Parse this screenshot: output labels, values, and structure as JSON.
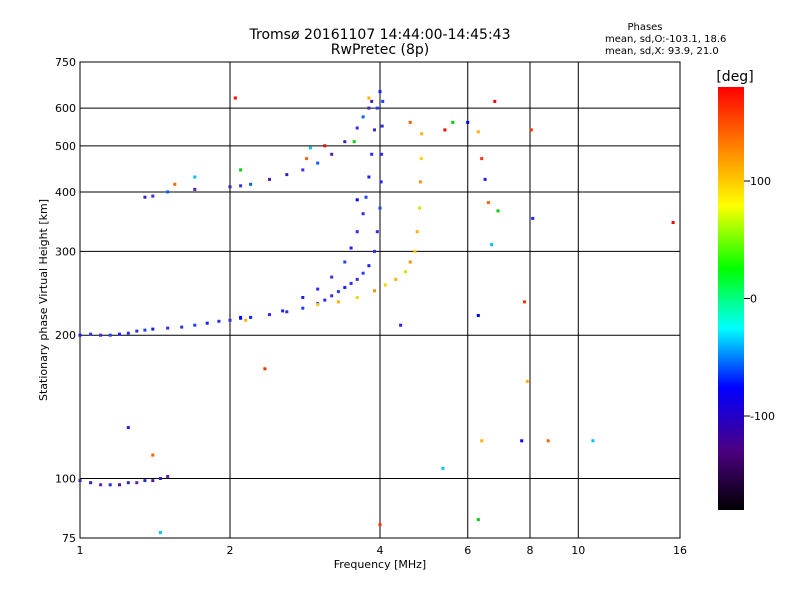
{
  "header": {
    "title_line1": "Tromsø 20161107 14:44:00-14:45:43",
    "title_line2": "RwPretec (8p)",
    "phases_heading": "Phases",
    "phases_o": "mean, sd,O:-103.1, 18.6",
    "phases_x": "mean, sd,X:  93.9, 21.0"
  },
  "colorbar": {
    "unit_label": "[deg]",
    "ticks": [
      "100",
      "0",
      "-100"
    ],
    "tick_values": [
      100,
      0,
      -100
    ],
    "range": [
      -180,
      180
    ]
  },
  "chart_data": {
    "type": "scatter",
    "title": "Tromsø 20161107 14:44:00-14:45:43",
    "subtitle": "RwPretec (8p)",
    "xlabel": "Frequency [MHz]",
    "ylabel": "Stationary phase Virtual Height [km]",
    "x_scale": "log",
    "y_scale": "log",
    "xlim": [
      1,
      16
    ],
    "ylim": [
      75,
      750
    ],
    "x_ticks": [
      1,
      2,
      4,
      6,
      8,
      10,
      16
    ],
    "x_tick_labels": [
      "1",
      "2",
      "4",
      "6",
      "8",
      "10",
      "16"
    ],
    "y_ticks": [
      75,
      100,
      200,
      300,
      400,
      500,
      600,
      750
    ],
    "y_tick_labels": [
      "75",
      "100",
      "200",
      "300",
      "400",
      "500",
      "600",
      "750"
    ],
    "grid": true,
    "series": [
      {
        "description_color": "blue",
        "points": [
          [
            1.0,
            200
          ],
          [
            1.05,
            201
          ],
          [
            1.1,
            200
          ],
          [
            1.15,
            200
          ],
          [
            1.2,
            201
          ],
          [
            1.25,
            202
          ],
          [
            1.3,
            204
          ],
          [
            1.35,
            205
          ],
          [
            1.4,
            206
          ],
          [
            1.5,
            207
          ],
          [
            1.6,
            208
          ],
          [
            1.7,
            210
          ],
          [
            1.8,
            212
          ],
          [
            1.9,
            214
          ],
          [
            2.0,
            215
          ],
          [
            2.1,
            217
          ],
          [
            2.2,
            218
          ],
          [
            2.4,
            221
          ],
          [
            2.6,
            224
          ],
          [
            2.8,
            228
          ],
          [
            3.0,
            233
          ],
          [
            3.1,
            237
          ],
          [
            3.2,
            242
          ],
          [
            3.3,
            247
          ],
          [
            3.4,
            252
          ],
          [
            3.5,
            257
          ],
          [
            3.6,
            262
          ],
          [
            3.7,
            270
          ],
          [
            3.8,
            280
          ],
          [
            3.9,
            300
          ],
          [
            3.95,
            330
          ],
          [
            4.0,
            370
          ],
          [
            4.02,
            420
          ],
          [
            4.03,
            480
          ],
          [
            4.04,
            550
          ],
          [
            4.05,
            620
          ]
        ]
      },
      {
        "description_color": "blue",
        "points": [
          [
            2.8,
            240
          ],
          [
            3.0,
            250
          ],
          [
            3.2,
            265
          ],
          [
            3.4,
            285
          ],
          [
            3.5,
            305
          ],
          [
            3.6,
            330
          ],
          [
            3.7,
            360
          ],
          [
            3.75,
            390
          ],
          [
            3.8,
            430
          ],
          [
            3.85,
            480
          ],
          [
            3.9,
            540
          ],
          [
            3.95,
            600
          ],
          [
            4.0,
            650
          ]
        ]
      },
      {
        "description_color": "purple-blue",
        "points": [
          [
            1.35,
            390
          ],
          [
            1.4,
            392
          ],
          [
            1.5,
            400
          ],
          [
            1.7,
            405
          ],
          [
            2.0,
            410
          ],
          [
            2.1,
            412
          ],
          [
            2.2,
            415
          ],
          [
            2.4,
            425
          ],
          [
            2.6,
            435
          ],
          [
            2.8,
            445
          ],
          [
            3.0,
            460
          ],
          [
            3.2,
            480
          ],
          [
            3.4,
            510
          ],
          [
            3.6,
            545
          ],
          [
            3.7,
            575
          ],
          [
            3.8,
            600
          ],
          [
            3.85,
            620
          ]
        ]
      },
      {
        "description_color": "yellow-orange",
        "points": [
          [
            3.0,
            232
          ],
          [
            3.3,
            235
          ],
          [
            3.6,
            240
          ],
          [
            3.9,
            248
          ],
          [
            4.1,
            255
          ],
          [
            4.3,
            262
          ],
          [
            4.5,
            272
          ],
          [
            4.6,
            285
          ],
          [
            4.7,
            300
          ],
          [
            4.75,
            330
          ],
          [
            4.8,
            370
          ],
          [
            4.82,
            420
          ],
          [
            4.84,
            470
          ],
          [
            4.85,
            530
          ]
        ]
      },
      {
        "description_color": "purple",
        "points": [
          [
            1.0,
            99
          ],
          [
            1.05,
            98
          ],
          [
            1.1,
            97
          ],
          [
            1.15,
            97
          ],
          [
            1.2,
            97
          ],
          [
            1.25,
            98
          ],
          [
            1.3,
            98
          ],
          [
            1.35,
            99
          ],
          [
            1.4,
            99
          ],
          [
            1.45,
            100
          ],
          [
            1.5,
            101
          ]
        ]
      },
      {
        "description_color": "mixed",
        "points": [
          [
            1.55,
            415
          ],
          [
            1.7,
            430
          ],
          [
            2.05,
            630
          ],
          [
            2.1,
            445
          ],
          [
            2.1,
            218
          ],
          [
            2.15,
            215
          ],
          [
            2.35,
            170
          ],
          [
            2.55,
            225
          ],
          [
            2.85,
            470
          ],
          [
            2.9,
            495
          ],
          [
            3.1,
            500
          ],
          [
            3.55,
            510
          ],
          [
            3.6,
            385
          ],
          [
            3.8,
            630
          ],
          [
            4.0,
            80
          ],
          [
            4.4,
            210
          ],
          [
            4.6,
            560
          ],
          [
            5.35,
            105
          ],
          [
            5.4,
            540
          ],
          [
            5.6,
            560
          ],
          [
            6.0,
            560
          ],
          [
            6.3,
            535
          ],
          [
            6.4,
            470
          ],
          [
            6.5,
            425
          ],
          [
            6.6,
            380
          ],
          [
            6.7,
            310
          ],
          [
            6.8,
            620
          ],
          [
            6.9,
            365
          ],
          [
            7.7,
            120
          ],
          [
            7.9,
            160
          ],
          [
            8.05,
            540
          ],
          [
            8.1,
            352
          ],
          [
            8.7,
            120
          ],
          [
            10.7,
            120
          ],
          [
            15.5,
            345
          ],
          [
            6.3,
            82
          ],
          [
            6.3,
            220
          ],
          [
            6.4,
            120
          ],
          [
            7.8,
            235
          ],
          [
            1.25,
            128
          ],
          [
            1.4,
            112
          ],
          [
            1.45,
            77
          ]
        ]
      }
    ]
  }
}
